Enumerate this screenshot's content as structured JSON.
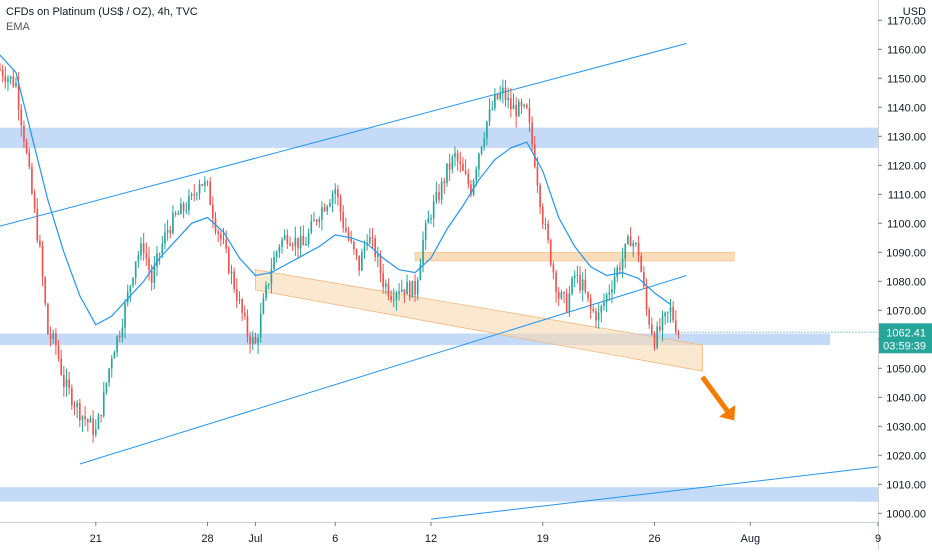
{
  "header": {
    "title": "CFDs on Platinum (US$ / OZ), 4h, TVC",
    "indicator": "EMA"
  },
  "price_axis": {
    "currency": "USD",
    "ticks": [
      "1170.00",
      "1160.00",
      "1150.00",
      "1140.00",
      "1130.00",
      "1120.00",
      "1110.00",
      "1100.00",
      "1090.00",
      "1080.00",
      "1070.00",
      "1060.00",
      "1050.00",
      "1040.00",
      "1030.00",
      "1020.00",
      "1010.00",
      "1000.00"
    ],
    "current_price": "1062.41",
    "countdown": "03:59:39"
  },
  "time_axis": {
    "ticks": [
      "21",
      "28",
      "Jul",
      "6",
      "12",
      "19",
      "26",
      "Aug",
      "9"
    ]
  },
  "colors": {
    "up": "#26a69a",
    "down": "#ef5350",
    "ema": "#2196f3",
    "trendline": "#2196f3",
    "support_zone": "#bbd3f6",
    "resistance_zone": "#f9d9b2",
    "arrow": "#f57c00",
    "price_label_bg": "#26a69a"
  },
  "chart_data": {
    "type": "candlestick",
    "title": "CFDs on Platinum (US$ / OZ), 4h, TVC",
    "unit": "USD",
    "ylim": [
      997,
      1177
    ],
    "x_range": [
      "2021-06-15",
      "2021-08-09"
    ],
    "close_path": [
      [
        "2021-06-15",
        1153
      ],
      [
        "2021-06-16",
        1148
      ],
      [
        "2021-06-16T12",
        1130
      ],
      [
        "2021-06-17",
        1110
      ],
      [
        "2021-06-17T12",
        1090
      ],
      [
        "2021-06-18",
        1062
      ],
      [
        "2021-06-18T12",
        1058
      ],
      [
        "2021-06-19",
        1045
      ],
      [
        "2021-06-20",
        1035
      ],
      [
        "2021-06-21",
        1028
      ],
      [
        "2021-06-21T12",
        1040
      ],
      [
        "2021-06-22",
        1055
      ],
      [
        "2021-06-22T12",
        1063
      ],
      [
        "2021-06-23",
        1075
      ],
      [
        "2021-06-23T12",
        1088
      ],
      [
        "2021-06-24",
        1092
      ],
      [
        "2021-06-24T12",
        1080
      ],
      [
        "2021-06-25",
        1090
      ],
      [
        "2021-06-25T12",
        1098
      ],
      [
        "2021-06-26",
        1102
      ],
      [
        "2021-06-27",
        1108
      ],
      [
        "2021-06-27T12",
        1115
      ],
      [
        "2021-06-28",
        1112
      ],
      [
        "2021-06-28T12",
        1100
      ],
      [
        "2021-06-29",
        1092
      ],
      [
        "2021-06-29T12",
        1082
      ],
      [
        "2021-06-30",
        1072
      ],
      [
        "2021-06-30T12",
        1062
      ],
      [
        "2021-07-01",
        1058
      ],
      [
        "2021-07-01T12",
        1072
      ],
      [
        "2021-07-02",
        1085
      ],
      [
        "2021-07-02T12",
        1093
      ],
      [
        "2021-07-03",
        1096
      ],
      [
        "2021-07-04",
        1092
      ],
      [
        "2021-07-04T12",
        1098
      ],
      [
        "2021-07-05",
        1104
      ],
      [
        "2021-07-05T12",
        1108
      ],
      [
        "2021-07-06",
        1112
      ],
      [
        "2021-07-06T12",
        1100
      ],
      [
        "2021-07-07",
        1092
      ],
      [
        "2021-07-07T12",
        1085
      ],
      [
        "2021-07-08",
        1096
      ],
      [
        "2021-07-08T12",
        1090
      ],
      [
        "2021-07-09",
        1080
      ],
      [
        "2021-07-09T12",
        1076
      ],
      [
        "2021-07-10",
        1078
      ],
      [
        "2021-07-11",
        1077
      ],
      [
        "2021-07-11T12",
        1094
      ],
      [
        "2021-07-12",
        1104
      ],
      [
        "2021-07-12T12",
        1110
      ],
      [
        "2021-07-13",
        1118
      ],
      [
        "2021-07-13T12",
        1123
      ],
      [
        "2021-07-14",
        1117
      ],
      [
        "2021-07-14T12",
        1112
      ],
      [
        "2021-07-15",
        1125
      ],
      [
        "2021-07-15T12",
        1135
      ],
      [
        "2021-07-16",
        1142
      ],
      [
        "2021-07-16T12",
        1145
      ],
      [
        "2021-07-17",
        1140
      ],
      [
        "2021-07-18",
        1138
      ],
      [
        "2021-07-18T12",
        1122
      ],
      [
        "2021-07-19",
        1102
      ],
      [
        "2021-07-19T12",
        1088
      ],
      [
        "2021-07-20",
        1075
      ],
      [
        "2021-07-20T12",
        1072
      ],
      [
        "2021-07-21",
        1082
      ],
      [
        "2021-07-21T12",
        1078
      ],
      [
        "2021-07-22",
        1070
      ],
      [
        "2021-07-22T12",
        1068
      ],
      [
        "2021-07-23",
        1075
      ],
      [
        "2021-07-23T12",
        1082
      ],
      [
        "2021-07-24",
        1088
      ],
      [
        "2021-07-24T12",
        1095
      ],
      [
        "2021-07-25",
        1090
      ],
      [
        "2021-07-25T12",
        1070
      ],
      [
        "2021-07-26",
        1060
      ],
      [
        "2021-07-26T12",
        1065
      ],
      [
        "2021-07-27",
        1070
      ],
      [
        "2021-07-27T12",
        1062.41
      ]
    ],
    "ema_path": [
      [
        "2021-06-15",
        1158
      ],
      [
        "2021-06-16",
        1152
      ],
      [
        "2021-06-17",
        1130
      ],
      [
        "2021-06-18",
        1108
      ],
      [
        "2021-06-19",
        1090
      ],
      [
        "2021-06-20",
        1075
      ],
      [
        "2021-06-21",
        1065
      ],
      [
        "2021-06-22",
        1068
      ],
      [
        "2021-06-23",
        1074
      ],
      [
        "2021-06-24",
        1080
      ],
      [
        "2021-06-25",
        1088
      ],
      [
        "2021-06-26",
        1094
      ],
      [
        "2021-06-27",
        1100
      ],
      [
        "2021-06-28",
        1102
      ],
      [
        "2021-06-29",
        1097
      ],
      [
        "2021-06-30",
        1088
      ],
      [
        "2021-07-01",
        1082
      ],
      [
        "2021-07-02",
        1083
      ],
      [
        "2021-07-03",
        1086
      ],
      [
        "2021-07-04",
        1089
      ],
      [
        "2021-07-05",
        1092
      ],
      [
        "2021-07-06",
        1096
      ],
      [
        "2021-07-07",
        1095
      ],
      [
        "2021-07-08",
        1093
      ],
      [
        "2021-07-09",
        1088
      ],
      [
        "2021-07-10",
        1084
      ],
      [
        "2021-07-11",
        1083
      ],
      [
        "2021-07-12",
        1088
      ],
      [
        "2021-07-13",
        1098
      ],
      [
        "2021-07-14",
        1106
      ],
      [
        "2021-07-15",
        1115
      ],
      [
        "2021-07-16",
        1122
      ],
      [
        "2021-07-17",
        1126
      ],
      [
        "2021-07-18",
        1128
      ],
      [
        "2021-07-19",
        1118
      ],
      [
        "2021-07-20",
        1102
      ],
      [
        "2021-07-21",
        1092
      ],
      [
        "2021-07-22",
        1085
      ],
      [
        "2021-07-23",
        1082
      ],
      [
        "2021-07-24",
        1083
      ],
      [
        "2021-07-25",
        1081
      ],
      [
        "2021-07-26",
        1076
      ],
      [
        "2021-07-27",
        1072
      ]
    ],
    "support_zones": [
      {
        "from": 1126,
        "to": 1133,
        "x_start": "2021-06-15",
        "x_end": "2021-08-09"
      },
      {
        "from": 1058,
        "to": 1062,
        "x_start": "2021-06-15",
        "x_end": "2021-08-06"
      },
      {
        "from": 1004,
        "to": 1009,
        "x_start": "2021-06-15",
        "x_end": "2021-08-09"
      }
    ],
    "resistance_zones": [
      {
        "from": 1087,
        "to": 1090,
        "x_start": "2021-07-11",
        "x_end": "2021-07-31"
      }
    ],
    "trendlines": [
      {
        "points": [
          [
            "2021-06-15",
            1099
          ],
          [
            "2021-07-28",
            1162
          ]
        ]
      },
      {
        "points": [
          [
            "2021-06-20",
            1017
          ],
          [
            "2021-07-28",
            1082
          ]
        ]
      },
      {
        "points": [
          [
            "2021-07-12",
            998
          ],
          [
            "2021-08-09",
            1016
          ]
        ]
      }
    ],
    "sloped_channel": {
      "upper": [
        [
          "2021-07-01",
          1084
        ],
        [
          "2021-07-29",
          1058
        ]
      ],
      "lower": [
        [
          "2021-07-01",
          1077
        ],
        [
          "2021-07-29",
          1049
        ]
      ]
    },
    "forecast_arrow": {
      "from": [
        "2021-07-29",
        1047
      ],
      "to": [
        "2021-07-31",
        1032
      ]
    }
  }
}
